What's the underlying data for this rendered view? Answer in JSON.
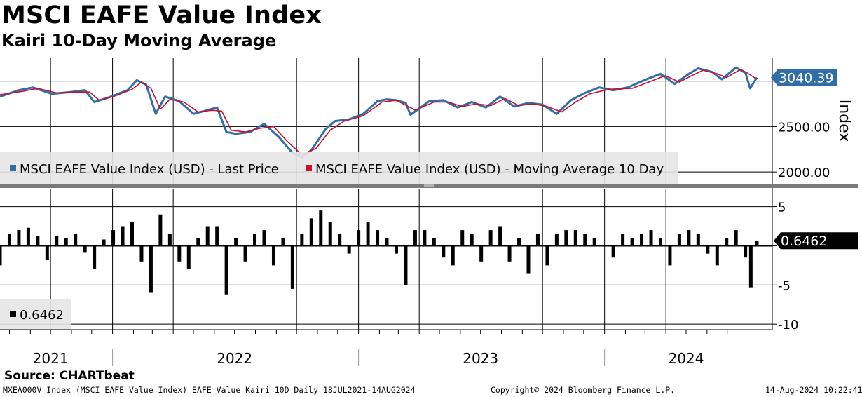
{
  "header": {
    "title": "MSCI EAFE Value Index",
    "subtitle": "Kairi 10-Day Moving Average"
  },
  "footer": {
    "source": "Source: CHARTbeat",
    "ticker_line": "MXEA000V Index (MSCI EAFE Value Index) EAFE Value Kairi 10D  Daily 18JUL2021-14AUG2024",
    "copyright": "Copyright© 2024 Bloomberg Finance L.P.",
    "timestamp": "14-Aug-2024 10:22:41"
  },
  "colors": {
    "last_price": "#2f6ea8",
    "moving_average": "#c8102e",
    "kairi": "#000000",
    "label_box": "#2f6ea8"
  },
  "chart_data": [
    {
      "type": "line",
      "ylabel": "Index",
      "yticks": [
        2000,
        2500,
        3000
      ],
      "ytick_labels": [
        "2000.00",
        "2500.00",
        ""
      ],
      "ylim": [
        1870,
        3260
      ],
      "xlim": [
        "2021-07-18",
        "2024-08-14"
      ],
      "grid": true,
      "legend_position": "bottom-left",
      "series": [
        {
          "name": "MSCI EAFE Value Index (USD) - Last Price",
          "color": "#2f6ea8",
          "points": [
            [
              "2021-07-18",
              2830
            ],
            [
              "2021-08-15",
              2900
            ],
            [
              "2021-09-05",
              2930
            ],
            [
              "2021-10-03",
              2860
            ],
            [
              "2021-10-31",
              2880
            ],
            [
              "2021-11-21",
              2900
            ],
            [
              "2021-12-05",
              2770
            ],
            [
              "2021-12-26",
              2820
            ],
            [
              "2022-01-23",
              2900
            ],
            [
              "2022-02-06",
              3010
            ],
            [
              "2022-02-20",
              2960
            ],
            [
              "2022-03-06",
              2640
            ],
            [
              "2022-03-20",
              2830
            ],
            [
              "2022-04-10",
              2780
            ],
            [
              "2022-05-01",
              2640
            ],
            [
              "2022-05-22",
              2680
            ],
            [
              "2022-06-05",
              2710
            ],
            [
              "2022-06-19",
              2440
            ],
            [
              "2022-07-03",
              2420
            ],
            [
              "2022-07-24",
              2440
            ],
            [
              "2022-08-14",
              2530
            ],
            [
              "2022-09-04",
              2390
            ],
            [
              "2022-09-25",
              2210
            ],
            [
              "2022-10-09",
              2160
            ],
            [
              "2022-10-23",
              2240
            ],
            [
              "2022-11-13",
              2470
            ],
            [
              "2022-11-27",
              2560
            ],
            [
              "2022-12-18",
              2580
            ],
            [
              "2023-01-08",
              2640
            ],
            [
              "2023-01-29",
              2780
            ],
            [
              "2023-02-12",
              2800
            ],
            [
              "2023-02-26",
              2790
            ],
            [
              "2023-03-12",
              2760
            ],
            [
              "2023-03-19",
              2630
            ],
            [
              "2023-04-16",
              2780
            ],
            [
              "2023-05-07",
              2790
            ],
            [
              "2023-05-28",
              2710
            ],
            [
              "2023-06-18",
              2770
            ],
            [
              "2023-07-09",
              2710
            ],
            [
              "2023-07-30",
              2830
            ],
            [
              "2023-08-20",
              2720
            ],
            [
              "2023-09-10",
              2760
            ],
            [
              "2023-10-01",
              2740
            ],
            [
              "2023-10-22",
              2640
            ],
            [
              "2023-11-12",
              2790
            ],
            [
              "2023-12-03",
              2870
            ],
            [
              "2023-12-24",
              2930
            ],
            [
              "2024-01-14",
              2900
            ],
            [
              "2024-02-04",
              2930
            ],
            [
              "2024-03-03",
              3020
            ],
            [
              "2024-03-24",
              3080
            ],
            [
              "2024-04-14",
              2970
            ],
            [
              "2024-05-05",
              3080
            ],
            [
              "2024-05-19",
              3140
            ],
            [
              "2024-06-09",
              3100
            ],
            [
              "2024-06-23",
              3020
            ],
            [
              "2024-07-14",
              3150
            ],
            [
              "2024-07-28",
              3090
            ],
            [
              "2024-08-04",
              2920
            ],
            [
              "2024-08-14",
              3040
            ]
          ]
        },
        {
          "name": "MSCI EAFE Value Index (USD) - Moving Average 10 Day",
          "color": "#c8102e",
          "points": [
            [
              "2021-07-18",
              2850
            ],
            [
              "2021-08-22",
              2890
            ],
            [
              "2021-09-12",
              2920
            ],
            [
              "2021-10-10",
              2870
            ],
            [
              "2021-11-07",
              2880
            ],
            [
              "2021-11-28",
              2880
            ],
            [
              "2021-12-12",
              2790
            ],
            [
              "2022-01-02",
              2830
            ],
            [
              "2022-01-30",
              2910
            ],
            [
              "2022-02-13",
              2990
            ],
            [
              "2022-02-27",
              2920
            ],
            [
              "2022-03-13",
              2690
            ],
            [
              "2022-03-27",
              2800
            ],
            [
              "2022-04-17",
              2770
            ],
            [
              "2022-05-08",
              2660
            ],
            [
              "2022-05-29",
              2680
            ],
            [
              "2022-06-12",
              2670
            ],
            [
              "2022-06-26",
              2460
            ],
            [
              "2022-07-17",
              2440
            ],
            [
              "2022-08-07",
              2480
            ],
            [
              "2022-08-28",
              2500
            ],
            [
              "2022-09-18",
              2330
            ],
            [
              "2022-10-09",
              2190
            ],
            [
              "2022-10-30",
              2260
            ],
            [
              "2022-11-20",
              2460
            ],
            [
              "2022-12-11",
              2560
            ],
            [
              "2023-01-08",
              2620
            ],
            [
              "2023-02-05",
              2770
            ],
            [
              "2023-02-26",
              2790
            ],
            [
              "2023-03-26",
              2680
            ],
            [
              "2023-04-23",
              2770
            ],
            [
              "2023-05-14",
              2770
            ],
            [
              "2023-06-04",
              2720
            ],
            [
              "2023-06-25",
              2750
            ],
            [
              "2023-07-16",
              2730
            ],
            [
              "2023-08-06",
              2810
            ],
            [
              "2023-08-27",
              2730
            ],
            [
              "2023-09-17",
              2750
            ],
            [
              "2023-10-08",
              2720
            ],
            [
              "2023-10-29",
              2660
            ],
            [
              "2023-11-19",
              2770
            ],
            [
              "2023-12-10",
              2860
            ],
            [
              "2024-01-07",
              2910
            ],
            [
              "2024-02-11",
              2920
            ],
            [
              "2024-03-10",
              3000
            ],
            [
              "2024-03-31",
              3060
            ],
            [
              "2024-04-21",
              2990
            ],
            [
              "2024-05-12",
              3070
            ],
            [
              "2024-05-26",
              3120
            ],
            [
              "2024-06-16",
              3080
            ],
            [
              "2024-06-30",
              3040
            ],
            [
              "2024-07-21",
              3130
            ],
            [
              "2024-08-04",
              3070
            ],
            [
              "2024-08-14",
              3020
            ]
          ]
        }
      ],
      "last_value_label": "3040.39"
    },
    {
      "type": "bar",
      "yticks": [
        5,
        0,
        -5,
        -10
      ],
      "ytick_labels": [
        "5",
        "",
        "-5",
        "-10"
      ],
      "ylim": [
        -10.7,
        7.2
      ],
      "xlim": [
        "2021-07-18",
        "2024-08-14"
      ],
      "grid": true,
      "legend_position": "bottom-left",
      "legend_value": "0.6462",
      "last_value_label": "0.6462",
      "series": [
        {
          "name": "",
          "color": "#000000",
          "points": [
            [
              "2021-07-18",
              -2.5
            ],
            [
              "2021-08-01",
              1.5
            ],
            [
              "2021-08-15",
              2.0
            ],
            [
              "2021-08-29",
              2.3
            ],
            [
              "2021-09-12",
              1.2
            ],
            [
              "2021-09-26",
              -1.8
            ],
            [
              "2021-10-10",
              1.3
            ],
            [
              "2021-10-24",
              1.0
            ],
            [
              "2021-11-07",
              1.5
            ],
            [
              "2021-11-21",
              -0.8
            ],
            [
              "2021-12-05",
              -3.0
            ],
            [
              "2021-12-19",
              0.8
            ],
            [
              "2022-01-02",
              2.0
            ],
            [
              "2022-01-16",
              2.5
            ],
            [
              "2022-01-30",
              3.0
            ],
            [
              "2022-02-13",
              -2.0
            ],
            [
              "2022-02-27",
              -6.0
            ],
            [
              "2022-03-13",
              4.0
            ],
            [
              "2022-03-27",
              1.5
            ],
            [
              "2022-04-10",
              -2.0
            ],
            [
              "2022-04-24",
              -3.0
            ],
            [
              "2022-05-08",
              1.0
            ],
            [
              "2022-05-22",
              2.5
            ],
            [
              "2022-06-05",
              2.5
            ],
            [
              "2022-06-19",
              -6.2
            ],
            [
              "2022-07-03",
              1.0
            ],
            [
              "2022-07-17",
              -2.0
            ],
            [
              "2022-07-31",
              1.5
            ],
            [
              "2022-08-14",
              2.0
            ],
            [
              "2022-08-28",
              -2.5
            ],
            [
              "2022-09-11",
              1.0
            ],
            [
              "2022-09-25",
              -5.5
            ],
            [
              "2022-10-09",
              1.5
            ],
            [
              "2022-10-23",
              3.5
            ],
            [
              "2022-11-06",
              4.5
            ],
            [
              "2022-11-20",
              3.0
            ],
            [
              "2022-12-04",
              1.5
            ],
            [
              "2022-12-18",
              -1.0
            ],
            [
              "2023-01-01",
              2.0
            ],
            [
              "2023-01-15",
              3.0
            ],
            [
              "2023-01-29",
              2.0
            ],
            [
              "2023-02-12",
              1.0
            ],
            [
              "2023-02-26",
              -1.0
            ],
            [
              "2023-03-12",
              -5.0
            ],
            [
              "2023-03-26",
              2.0
            ],
            [
              "2023-04-09",
              2.0
            ],
            [
              "2023-04-23",
              1.0
            ],
            [
              "2023-05-07",
              -1.5
            ],
            [
              "2023-05-21",
              -2.5
            ],
            [
              "2023-06-04",
              2.0
            ],
            [
              "2023-06-18",
              1.5
            ],
            [
              "2023-07-02",
              -2.0
            ],
            [
              "2023-07-16",
              2.0
            ],
            [
              "2023-07-30",
              2.5
            ],
            [
              "2023-08-13",
              -2.0
            ],
            [
              "2023-08-27",
              1.0
            ],
            [
              "2023-09-10",
              -3.5
            ],
            [
              "2023-09-24",
              1.5
            ],
            [
              "2023-10-08",
              -2.5
            ],
            [
              "2023-10-22",
              1.5
            ],
            [
              "2023-11-05",
              2.0
            ],
            [
              "2023-11-19",
              2.0
            ],
            [
              "2023-12-03",
              1.5
            ],
            [
              "2023-12-17",
              1.0
            ],
            [
              "2024-01-14",
              -1.5
            ],
            [
              "2024-01-28",
              1.5
            ],
            [
              "2024-02-11",
              1.0
            ],
            [
              "2024-02-25",
              1.5
            ],
            [
              "2024-03-10",
              2.0
            ],
            [
              "2024-03-24",
              1.0
            ],
            [
              "2024-04-07",
              -2.5
            ],
            [
              "2024-04-21",
              1.5
            ],
            [
              "2024-05-05",
              2.0
            ],
            [
              "2024-05-19",
              1.5
            ],
            [
              "2024-06-02",
              -1.0
            ],
            [
              "2024-06-16",
              -2.5
            ],
            [
              "2024-06-30",
              1.0
            ],
            [
              "2024-07-14",
              2.0
            ],
            [
              "2024-07-28",
              -1.5
            ],
            [
              "2024-08-05",
              -5.3
            ],
            [
              "2024-08-14",
              0.6462
            ]
          ]
        }
      ]
    }
  ],
  "x_axis": {
    "year_labels": [
      {
        "date": "2021-10-01",
        "label": "2021"
      },
      {
        "date": "2022-07-01",
        "label": "2022"
      },
      {
        "date": "2023-07-01",
        "label": "2023"
      },
      {
        "date": "2024-05-01",
        "label": "2024"
      }
    ],
    "year_boundaries": [
      "2022-01-01",
      "2023-01-01",
      "2024-01-01"
    ],
    "quarter_gridlines": [
      "2021-10-01",
      "2022-04-01",
      "2022-10-01",
      "2023-04-01",
      "2023-10-01",
      "2024-04-01"
    ]
  }
}
